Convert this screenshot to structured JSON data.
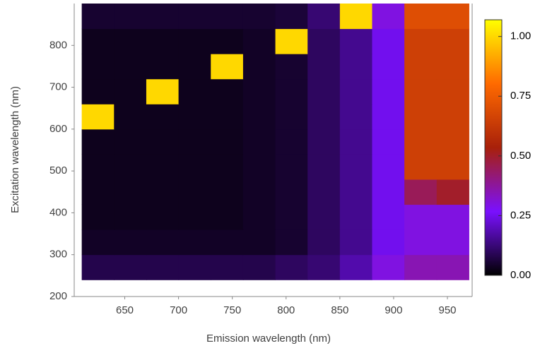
{
  "chart_data": {
    "type": "heatmap",
    "x_label": "Emission wavelength (nm)",
    "y_label": "Excitation  wavelength (nm)",
    "x": [
      625,
      655,
      685,
      715,
      745,
      775,
      805,
      835,
      865,
      895,
      925,
      955
    ],
    "y": [
      270,
      330,
      390,
      450,
      510,
      570,
      630,
      690,
      750,
      810,
      870
    ],
    "z": [
      [
        0.08,
        0.08,
        0.08,
        0.08,
        0.08,
        0.08,
        0.1,
        0.12,
        0.18,
        0.3,
        0.35,
        0.35
      ],
      [
        0.04,
        0.04,
        0.04,
        0.04,
        0.04,
        0.04,
        0.05,
        0.1,
        0.15,
        0.25,
        0.3,
        0.3
      ],
      [
        0.03,
        0.03,
        0.03,
        0.03,
        0.03,
        0.04,
        0.05,
        0.1,
        0.15,
        0.25,
        0.3,
        0.3
      ],
      [
        0.03,
        0.03,
        0.03,
        0.03,
        0.03,
        0.04,
        0.05,
        0.1,
        0.15,
        0.25,
        0.45,
        0.5
      ],
      [
        0.03,
        0.03,
        0.03,
        0.03,
        0.03,
        0.04,
        0.05,
        0.1,
        0.15,
        0.25,
        0.65,
        0.65
      ],
      [
        0.03,
        0.03,
        0.03,
        0.03,
        0.03,
        0.04,
        0.05,
        0.1,
        0.15,
        0.25,
        0.65,
        0.65
      ],
      [
        1.0,
        0.03,
        0.03,
        0.03,
        0.03,
        0.04,
        0.05,
        0.1,
        0.15,
        0.25,
        0.65,
        0.65
      ],
      [
        0.03,
        0.03,
        1.0,
        0.03,
        0.03,
        0.04,
        0.05,
        0.1,
        0.15,
        0.25,
        0.65,
        0.65
      ],
      [
        0.03,
        0.03,
        0.03,
        0.03,
        1.0,
        0.04,
        0.05,
        0.1,
        0.15,
        0.25,
        0.65,
        0.65
      ],
      [
        0.03,
        0.03,
        0.03,
        0.03,
        0.03,
        0.04,
        1.0,
        0.1,
        0.15,
        0.25,
        0.65,
        0.65
      ],
      [
        0.05,
        0.05,
        0.05,
        0.05,
        0.05,
        0.05,
        0.06,
        0.12,
        1.0,
        0.3,
        0.7,
        0.7
      ]
    ],
    "xlim": [
      603,
      973
    ],
    "xticks": [
      650,
      700,
      750,
      800,
      850,
      900,
      950
    ],
    "ylim": [
      200,
      900
    ],
    "yticks": [
      200,
      300,
      400,
      500,
      600,
      700,
      800
    ],
    "clim": [
      0,
      1.07
    ],
    "cticks": [
      {
        "value": 0,
        "label": "0.00"
      },
      {
        "value": 0.25,
        "label": "0.25"
      },
      {
        "value": 0.5,
        "label": "0.50"
      },
      {
        "value": 0.75,
        "label": "0.75"
      },
      {
        "value": 1,
        "label": "1.00"
      }
    ],
    "colormap": [
      "#000000",
      "#7a10ff",
      "#a8200a",
      "#ff6a00",
      "#ffff00"
    ]
  }
}
